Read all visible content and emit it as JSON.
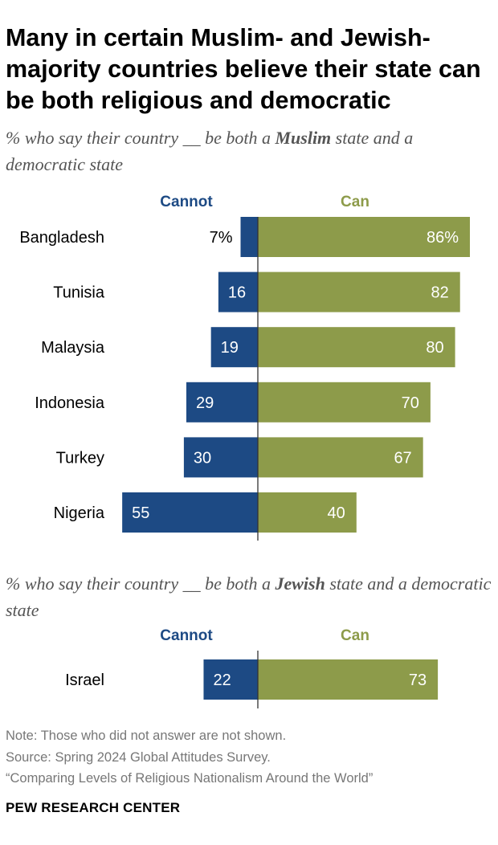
{
  "title": "Many in certain Muslim- and Jewish-majority countries believe their state can be both religious and democratic",
  "colors": {
    "cannot": "#1d4a84",
    "can": "#8d9b4a",
    "axis": "#333333",
    "text": "#000000",
    "muted": "#777777"
  },
  "chart_data": [
    {
      "type": "bar",
      "orientation": "horizontal-diverging",
      "subtitle": {
        "before": "% who say their country __ be both a ",
        "emphasis": "Muslim",
        "after": " state and a democratic state"
      },
      "legend": {
        "cannot": "Cannot",
        "can": "Can"
      },
      "categories": [
        "Bangladesh",
        "Tunisia",
        "Malaysia",
        "Indonesia",
        "Turkey",
        "Nigeria"
      ],
      "series": [
        {
          "name": "Cannot",
          "values": [
            7,
            16,
            19,
            29,
            30,
            55
          ],
          "labels": [
            "7%",
            "16",
            "19",
            "29",
            "30",
            "55"
          ]
        },
        {
          "name": "Can",
          "values": [
            86,
            82,
            80,
            70,
            67,
            40
          ],
          "labels": [
            "86%",
            "82",
            "80",
            "70",
            "67",
            "40"
          ]
        }
      ]
    },
    {
      "type": "bar",
      "orientation": "horizontal-diverging",
      "subtitle": {
        "before": "% who say their country __ be both a ",
        "emphasis": "Jewish",
        "after": " state and a democratic state"
      },
      "legend": {
        "cannot": "Cannot",
        "can": "Can"
      },
      "categories": [
        "Israel"
      ],
      "series": [
        {
          "name": "Cannot",
          "values": [
            22
          ],
          "labels": [
            "22"
          ]
        },
        {
          "name": "Can",
          "values": [
            73
          ],
          "labels": [
            "73"
          ]
        }
      ]
    }
  ],
  "notes": {
    "note": "Note: Those who did not answer are not shown.",
    "source": "Source: Spring 2024 Global Attitudes Survey.",
    "report": "“Comparing Levels of Religious Nationalism Around the World”"
  },
  "brand": "PEW RESEARCH CENTER"
}
